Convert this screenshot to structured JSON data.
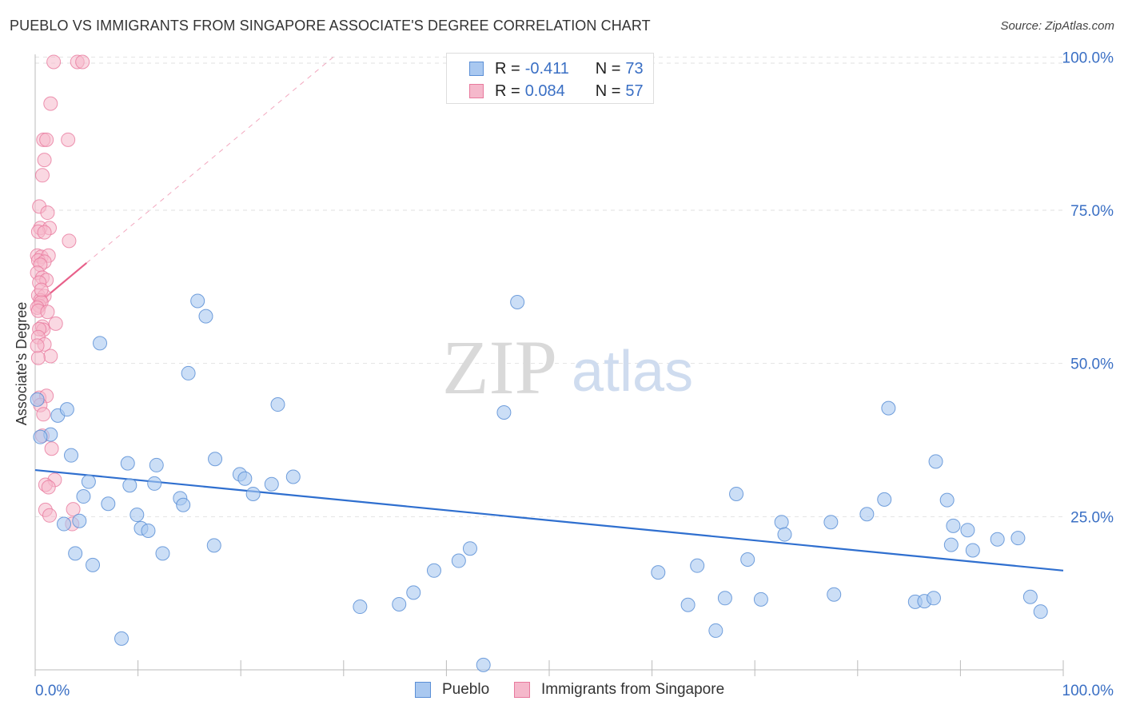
{
  "header": {
    "title": "PUEBLO VS IMMIGRANTS FROM SINGAPORE ASSOCIATE'S DEGREE CORRELATION CHART",
    "source": "Source: ZipAtlas.com"
  },
  "watermark": {
    "zip": "ZIP",
    "atlas": "atlas"
  },
  "colors": {
    "pueblo_fill": "#a9c8f0",
    "pueblo_stroke": "#5b8fd6",
    "pueblo_line": "#2f6fcf",
    "singapore_fill": "#f5b8cb",
    "singapore_stroke": "#e8799d",
    "singapore_line": "#e8608a",
    "axis_label": "#3a6fc4"
  },
  "legend_top": {
    "pueblo": {
      "r_label": "R = ",
      "r_value": "-0.411",
      "n_label": "N = ",
      "n_value": "73"
    },
    "singapore": {
      "r_label": "R = ",
      "r_value": "0.084",
      "n_label": "N = ",
      "n_value": "57"
    }
  },
  "legend_bottom": {
    "pueblo": "Pueblo",
    "singapore": "Immigrants from Singapore"
  },
  "chart_data": {
    "type": "scatter",
    "title": "PUEBLO VS IMMIGRANTS FROM SINGAPORE ASSOCIATE'S DEGREE CORRELATION CHART",
    "xlabel": "",
    "ylabel": "Associate's Degree",
    "xlim": [
      0,
      100
    ],
    "ylim": [
      0,
      100
    ],
    "x_tick_labels": [
      "0.0%",
      "100.0%"
    ],
    "y_tick_labels": [
      "100.0%",
      "75.0%",
      "50.0%",
      "25.0%"
    ],
    "y_tick_values": [
      100,
      75,
      50,
      25
    ],
    "grid": true,
    "legend_position": "top-center",
    "series": [
      {
        "name": "Pueblo",
        "r": -0.411,
        "n": 73,
        "trend": {
          "x": [
            0,
            100
          ],
          "y": [
            32.6,
            16.2
          ]
        },
        "points": [
          [
            0.2,
            44.1
          ],
          [
            1.5,
            38.4
          ],
          [
            2.2,
            41.5
          ],
          [
            2.8,
            23.8
          ],
          [
            3.1,
            42.5
          ],
          [
            3.5,
            35.0
          ],
          [
            3.9,
            19.0
          ],
          [
            4.3,
            24.3
          ],
          [
            4.7,
            28.3
          ],
          [
            5.2,
            30.7
          ],
          [
            5.6,
            17.1
          ],
          [
            6.3,
            53.3
          ],
          [
            7.1,
            27.1
          ],
          [
            8.4,
            5.1
          ],
          [
            9.0,
            33.7
          ],
          [
            9.2,
            30.1
          ],
          [
            9.9,
            25.3
          ],
          [
            10.3,
            23.1
          ],
          [
            11.0,
            22.7
          ],
          [
            11.6,
            30.4
          ],
          [
            11.8,
            33.4
          ],
          [
            12.4,
            19.0
          ],
          [
            14.1,
            28.0
          ],
          [
            14.4,
            26.9
          ],
          [
            14.9,
            48.4
          ],
          [
            15.8,
            60.2
          ],
          [
            16.6,
            57.7
          ],
          [
            17.4,
            20.3
          ],
          [
            17.5,
            34.4
          ],
          [
            19.9,
            31.9
          ],
          [
            20.4,
            31.2
          ],
          [
            21.2,
            28.7
          ],
          [
            23.0,
            30.3
          ],
          [
            23.6,
            43.3
          ],
          [
            25.1,
            31.5
          ],
          [
            31.6,
            10.3
          ],
          [
            35.4,
            10.7
          ],
          [
            36.8,
            12.6
          ],
          [
            38.8,
            16.2
          ],
          [
            41.2,
            17.8
          ],
          [
            42.3,
            19.8
          ],
          [
            43.6,
            0.8
          ],
          [
            45.6,
            42.0
          ],
          [
            46.9,
            60.0
          ],
          [
            60.6,
            15.9
          ],
          [
            63.5,
            10.6
          ],
          [
            64.4,
            17.0
          ],
          [
            66.2,
            6.4
          ],
          [
            67.1,
            11.7
          ],
          [
            68.2,
            28.7
          ],
          [
            69.3,
            18.0
          ],
          [
            70.6,
            11.5
          ],
          [
            72.6,
            24.1
          ],
          [
            72.9,
            22.1
          ],
          [
            77.4,
            24.1
          ],
          [
            77.7,
            12.3
          ],
          [
            80.9,
            25.4
          ],
          [
            82.6,
            27.8
          ],
          [
            83.0,
            42.7
          ],
          [
            85.6,
            11.1
          ],
          [
            86.5,
            11.2
          ],
          [
            87.4,
            11.7
          ],
          [
            87.6,
            34.0
          ],
          [
            88.7,
            27.7
          ],
          [
            89.1,
            20.4
          ],
          [
            89.3,
            23.5
          ],
          [
            90.7,
            22.8
          ],
          [
            91.2,
            19.5
          ],
          [
            93.6,
            21.3
          ],
          [
            95.6,
            21.5
          ],
          [
            96.8,
            11.9
          ],
          [
            97.8,
            9.5
          ],
          [
            0.5,
            38.0
          ]
        ]
      },
      {
        "name": "Immigrants from Singapore",
        "r": 0.084,
        "n": 57,
        "trend": {
          "x": [
            0,
            5.0
          ],
          "y": [
            59.4,
            66.4
          ],
          "extended": {
            "x": [
              0,
              100
            ],
            "y": [
              59.4,
              199.4
            ]
          }
        },
        "points": [
          [
            1.8,
            99.2
          ],
          [
            4.1,
            99.2
          ],
          [
            4.6,
            99.2
          ],
          [
            1.5,
            92.4
          ],
          [
            0.8,
            86.5
          ],
          [
            1.1,
            86.5
          ],
          [
            3.2,
            86.5
          ],
          [
            0.9,
            83.2
          ],
          [
            0.7,
            80.7
          ],
          [
            0.4,
            75.6
          ],
          [
            1.2,
            74.6
          ],
          [
            0.5,
            72.1
          ],
          [
            1.4,
            72.1
          ],
          [
            0.3,
            71.5
          ],
          [
            0.9,
            71.4
          ],
          [
            3.3,
            70.0
          ],
          [
            0.2,
            67.6
          ],
          [
            0.6,
            67.4
          ],
          [
            1.3,
            67.6
          ],
          [
            0.3,
            66.8
          ],
          [
            0.9,
            66.6
          ],
          [
            0.5,
            66.1
          ],
          [
            0.2,
            64.8
          ],
          [
            0.7,
            64.0
          ],
          [
            1.1,
            63.6
          ],
          [
            0.4,
            63.2
          ],
          [
            0.3,
            61.1
          ],
          [
            0.9,
            61.0
          ],
          [
            0.5,
            60.3
          ],
          [
            0.4,
            59.4
          ],
          [
            0.6,
            60.0
          ],
          [
            0.2,
            59.1
          ],
          [
            0.3,
            58.6
          ],
          [
            0.7,
            56.0
          ],
          [
            0.8,
            55.5
          ],
          [
            0.4,
            55.6
          ],
          [
            0.3,
            54.3
          ],
          [
            0.9,
            53.1
          ],
          [
            1.5,
            51.2
          ],
          [
            0.3,
            50.9
          ],
          [
            0.4,
            44.4
          ],
          [
            1.1,
            44.7
          ],
          [
            0.7,
            38.2
          ],
          [
            1.6,
            36.1
          ],
          [
            1.9,
            31.0
          ],
          [
            1.0,
            30.2
          ],
          [
            1.3,
            29.8
          ],
          [
            1.0,
            26.1
          ],
          [
            1.4,
            25.2
          ],
          [
            3.7,
            26.2
          ],
          [
            3.6,
            23.8
          ],
          [
            0.5,
            43.2
          ],
          [
            0.8,
            41.7
          ],
          [
            0.2,
            52.9
          ],
          [
            2.0,
            56.5
          ],
          [
            0.6,
            62.0
          ],
          [
            1.2,
            58.4
          ]
        ]
      }
    ]
  }
}
